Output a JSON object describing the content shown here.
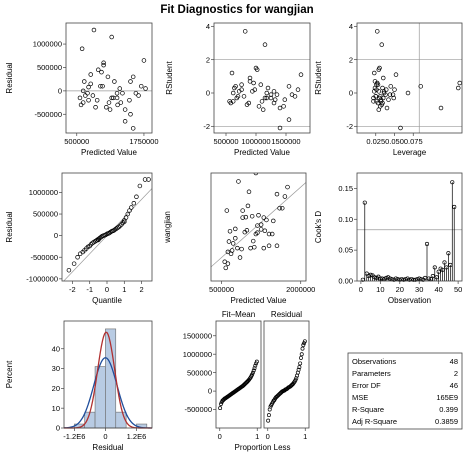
{
  "title": "Fit Diagnostics for wangjian",
  "chart_data": [
    {
      "id": "p1",
      "type": "scatter",
      "xlabel": "Predicted Value",
      "ylabel": "Residual",
      "xlim": [
        300000,
        1900000
      ],
      "ylim": [
        -900000,
        1450000
      ],
      "xticks": [
        {
          "v": 500000,
          "t": "500000"
        },
        {
          "v": 1750000,
          "t": "1750000"
        }
      ],
      "yticks": [
        {
          "v": 1000000,
          "t": "1000000"
        },
        {
          "v": 500000,
          "t": "500000"
        },
        {
          "v": 0,
          "t": "0"
        },
        {
          "v": -500000,
          "t": "-500000"
        }
      ],
      "hlines": [
        0
      ],
      "x": [
        560000,
        600000,
        640000,
        700000,
        760000,
        820000,
        880000,
        940000,
        1000000,
        1050000,
        1100000,
        1150000,
        1200000,
        1250000,
        1300000,
        1350000,
        1400000,
        1480000,
        1550000,
        1600000,
        1700000,
        1750000,
        1780000,
        1500000,
        1260000,
        660000,
        720000,
        900000,
        980000,
        1080000,
        1180000,
        1320000,
        580000,
        620000,
        800000,
        960000,
        1120000,
        1400000,
        1650000,
        1000000,
        850000,
        760000,
        1250000,
        1550000,
        1500000,
        1150000,
        720000,
        620000
      ],
      "y": [
        -150000,
        900000,
        200000,
        -50000,
        350000,
        1300000,
        -200000,
        100000,
        600000,
        -350000,
        -250000,
        1150000,
        200000,
        -150000,
        50000,
        -50000,
        -400000,
        -200000,
        300000,
        -50000,
        100000,
        650000,
        50000,
        -500000,
        -300000,
        -100000,
        -200000,
        450000,
        100000,
        300000,
        -150000,
        -250000,
        -300000,
        0,
        -100000,
        400000,
        -400000,
        -650000,
        -100000,
        550000,
        -350000,
        150000,
        -50000,
        -800000,
        200000,
        -150000,
        80000,
        -250000
      ]
    },
    {
      "id": "p2",
      "type": "scatter",
      "xlabel": "Predicted Value",
      "ylabel": "RStudent",
      "xlim": [
        300000,
        1900000
      ],
      "ylim": [
        -2.4,
        4.2
      ],
      "xticks": [
        {
          "v": 500000,
          "t": "500000"
        },
        {
          "v": 1000000,
          "t": "1000000"
        },
        {
          "v": 1500000,
          "t": "1500000"
        }
      ],
      "yticks": [
        {
          "v": 4,
          "t": "4"
        },
        {
          "v": 2,
          "t": "2"
        },
        {
          "v": 0,
          "t": "0"
        },
        {
          "v": -2,
          "t": "-2"
        }
      ],
      "hlines": [
        2,
        -2
      ],
      "x": [
        560000,
        600000,
        640000,
        700000,
        760000,
        820000,
        880000,
        940000,
        1000000,
        1050000,
        1100000,
        1150000,
        1200000,
        1250000,
        1300000,
        1350000,
        1400000,
        1480000,
        1550000,
        1600000,
        1700000,
        1750000,
        680000,
        900000,
        980000,
        1080000,
        1180000,
        1320000,
        580000,
        620000,
        800000,
        960000,
        1120000,
        1400000,
        1650000,
        850000,
        760000,
        1250000,
        1550000,
        1150000,
        720000,
        620000,
        1020000,
        900000,
        1180000,
        1460000,
        660000,
        1300000
      ],
      "y": [
        -0.5,
        1.2,
        0.3,
        -0.2,
        0.5,
        3.7,
        -0.6,
        0.1,
        1.5,
        -0.8,
        -0.5,
        2.9,
        0.3,
        -0.3,
        0.1,
        -0.1,
        -0.9,
        -0.4,
        0.4,
        -0.1,
        0.2,
        1.1,
        -0.3,
        0.7,
        0.2,
        0.5,
        -0.3,
        -0.4,
        -0.6,
        0.0,
        -0.2,
        0.6,
        -1.0,
        -2.1,
        -0.2,
        -0.7,
        0.2,
        -0.1,
        -1.6,
        -0.3,
        0.1,
        -0.5,
        1.4,
        0.9,
        0.0,
        -0.8,
        0.4,
        -0.6
      ]
    },
    {
      "id": "p3",
      "type": "scatter",
      "xlabel": "Leverage",
      "ylabel": "RStudent",
      "xlim": [
        0.0,
        0.14
      ],
      "ylim": [
        -2.4,
        4.2
      ],
      "xticks": [
        {
          "v": 0.025,
          "t": "0.025"
        },
        {
          "v": 0.05,
          "t": "0.050"
        },
        {
          "v": 0.075,
          "t": "0.075"
        }
      ],
      "yticks": [
        {
          "v": 4,
          "t": "4"
        },
        {
          "v": 2,
          "t": "2"
        },
        {
          "v": 0,
          "t": "0"
        },
        {
          "v": -2,
          "t": "-2"
        }
      ],
      "hlines": [
        2,
        -2
      ],
      "vlines": [
        0.083
      ],
      "x": [
        0.022,
        0.023,
        0.024,
        0.025,
        0.026,
        0.027,
        0.028,
        0.029,
        0.03,
        0.031,
        0.032,
        0.033,
        0.034,
        0.035,
        0.036,
        0.038,
        0.04,
        0.042,
        0.045,
        0.048,
        0.05,
        0.052,
        0.022,
        0.024,
        0.026,
        0.028,
        0.03,
        0.032,
        0.034,
        0.036,
        0.025,
        0.027,
        0.029,
        0.031,
        0.033,
        0.039,
        0.044,
        0.049,
        0.023,
        0.026,
        0.029,
        0.035,
        0.068,
        0.085,
        0.112,
        0.135,
        0.137,
        0.058
      ],
      "y": [
        -0.5,
        1.2,
        0.3,
        -0.2,
        0.5,
        3.7,
        -0.6,
        0.1,
        1.5,
        -0.8,
        -0.5,
        2.9,
        0.3,
        -0.3,
        0.1,
        -0.1,
        -0.9,
        -0.4,
        0.4,
        -0.1,
        0.2,
        1.1,
        -0.3,
        0.7,
        0.2,
        0.5,
        -0.3,
        -0.4,
        -0.6,
        0.0,
        -0.2,
        0.6,
        -1.0,
        -0.2,
        -0.7,
        0.2,
        -0.1,
        -0.3,
        0.1,
        -0.5,
        1.4,
        0.9,
        0.0,
        0.4,
        -0.9,
        0.3,
        0.6,
        -2.1
      ]
    },
    {
      "id": "p4",
      "type": "scatter",
      "xlabel": "Quantile",
      "ylabel": "Residual",
      "xlim": [
        -2.6,
        2.6
      ],
      "ylim": [
        -1050000,
        1450000
      ],
      "xticks": [
        {
          "v": -2,
          "t": "-2"
        },
        {
          "v": -1,
          "t": "-1"
        },
        {
          "v": 0,
          "t": "0"
        },
        {
          "v": 1,
          "t": "1"
        },
        {
          "v": 2,
          "t": "2"
        }
      ],
      "yticks": [
        {
          "v": 1000000,
          "t": "1000000"
        },
        {
          "v": 500000,
          "t": "500000"
        },
        {
          "v": 0,
          "t": "0"
        },
        {
          "v": -500000,
          "t": "-500000"
        },
        {
          "v": -1000000,
          "t": "-1000000"
        }
      ],
      "refline": {
        "slope": 420000,
        "intercept": 0
      },
      "x": [
        -2.2,
        -1.9,
        -1.7,
        -1.55,
        -1.4,
        -1.3,
        -1.2,
        -1.1,
        -1.0,
        -0.92,
        -0.84,
        -0.76,
        -0.68,
        -0.6,
        -0.53,
        -0.46,
        -0.4,
        -0.33,
        -0.27,
        -0.2,
        -0.13,
        -0.07,
        0.0,
        0.07,
        0.13,
        0.2,
        0.27,
        0.33,
        0.4,
        0.46,
        0.53,
        0.6,
        0.68,
        0.76,
        0.84,
        0.92,
        1.0,
        1.1,
        1.2,
        1.3,
        1.4,
        1.55,
        1.7,
        1.9,
        2.2,
        2.4,
        1.0,
        -0.5
      ],
      "y": [
        -800000,
        -650000,
        -500000,
        -420000,
        -380000,
        -340000,
        -300000,
        -260000,
        -240000,
        -200000,
        -170000,
        -150000,
        -130000,
        -110000,
        -90000,
        -70000,
        -50000,
        -30000,
        -10000,
        0,
        10000,
        20000,
        40000,
        50000,
        60000,
        80000,
        100000,
        110000,
        120000,
        140000,
        160000,
        180000,
        200000,
        230000,
        260000,
        300000,
        350000,
        420000,
        500000,
        580000,
        650000,
        750000,
        900000,
        1150000,
        1300000,
        1300000,
        320000,
        -100000
      ]
    },
    {
      "id": "p5",
      "type": "scatter",
      "xlabel": "Predicted Value",
      "ylabel": "wangjian",
      "xlim": [
        300000,
        2100000
      ],
      "ylim": [
        0,
        2300000
      ],
      "xticks": [
        {
          "v": 500000,
          "t": "500000"
        },
        {
          "v": 2000000,
          "t": "2000000"
        }
      ],
      "yticks": [],
      "refline": {
        "slope": 1,
        "intercept": 0
      },
      "x": [
        560000,
        600000,
        640000,
        700000,
        760000,
        820000,
        880000,
        940000,
        1000000,
        1050000,
        1100000,
        1150000,
        1200000,
        1250000,
        1300000,
        1350000,
        1400000,
        1480000,
        1550000,
        1600000,
        1700000,
        1750000,
        680000,
        900000,
        980000,
        1080000,
        1180000,
        1320000,
        580000,
        620000,
        800000,
        960000,
        1120000,
        1400000,
        1650000,
        850000,
        760000,
        1250000,
        1550000,
        1150000,
        720000,
        620000,
        1020000,
        900000,
        1180000,
        1460000,
        660000,
        1300000
      ],
      "y": [
        410000,
        1500000,
        840000,
        650000,
        1110000,
        2120000,
        680000,
        1040000,
        1600000,
        700000,
        850000,
        2300000,
        1400000,
        1100000,
        1350000,
        1300000,
        1000000,
        1280000,
        1850000,
        1550000,
        1800000,
        2000000,
        580000,
        1350000,
        1080000,
        1380000,
        1030000,
        1070000,
        280000,
        620000,
        700000,
        1360000,
        720000,
        750000,
        1550000,
        500000,
        910000,
        1200000,
        750000,
        1000000,
        800000,
        370000,
        1900000,
        1500000,
        1180000,
        1000000,
        1060000,
        700000
      ]
    },
    {
      "id": "p6",
      "type": "needle",
      "xlabel": "Observation",
      "ylabel": "Cook's D",
      "xlim": [
        -2,
        52
      ],
      "ylim": [
        0,
        0.175
      ],
      "xticks": [
        {
          "v": 0,
          "t": "0"
        },
        {
          "v": 10,
          "t": "10"
        },
        {
          "v": 20,
          "t": "20"
        },
        {
          "v": 30,
          "t": "30"
        },
        {
          "v": 40,
          "t": "40"
        },
        {
          "v": 50,
          "t": "50"
        }
      ],
      "yticks": [
        {
          "v": 0.15,
          "t": "0.15"
        },
        {
          "v": 0.1,
          "t": "0.10"
        },
        {
          "v": 0.05,
          "t": "0.05"
        },
        {
          "v": 0.0,
          "t": "0.00"
        }
      ],
      "hlines": [
        0.083
      ],
      "x": [
        1,
        2,
        3,
        4,
        5,
        6,
        7,
        8,
        9,
        10,
        11,
        12,
        13,
        14,
        15,
        16,
        17,
        18,
        19,
        20,
        21,
        22,
        23,
        24,
        25,
        26,
        27,
        28,
        29,
        30,
        31,
        32,
        33,
        34,
        35,
        36,
        37,
        38,
        39,
        40,
        41,
        42,
        43,
        44,
        45,
        46,
        47,
        48
      ],
      "y": [
        0.002,
        0.127,
        0.012,
        0.008,
        0.01,
        0.009,
        0.006,
        0.005,
        0.007,
        0.004,
        0.004,
        0.003,
        0.005,
        0.006,
        0.004,
        0.003,
        0.002,
        0.004,
        0.003,
        0.002,
        0.003,
        0.002,
        0.003,
        0.004,
        0.002,
        0.003,
        0.002,
        0.002,
        0.003,
        0.004,
        0.003,
        0.002,
        0.005,
        0.06,
        0.004,
        0.003,
        0.008,
        0.022,
        0.006,
        0.015,
        0.02,
        0.018,
        0.03,
        0.022,
        0.045,
        0.026,
        0.16,
        0.12
      ]
    },
    {
      "id": "p7",
      "type": "histogram",
      "xlabel": "Residual",
      "ylabel": "Percent",
      "xlim": [
        -1600000,
        1800000
      ],
      "ylim": [
        0,
        54
      ],
      "xticks": [
        {
          "v": -1200000,
          "t": "-1.2E6"
        },
        {
          "v": 0,
          "t": "0"
        },
        {
          "v": 1200000,
          "t": "1.2E6"
        }
      ],
      "yticks": [
        {
          "v": 40,
          "t": "40"
        },
        {
          "v": 30,
          "t": "30"
        },
        {
          "v": 20,
          "t": "20"
        },
        {
          "v": 10,
          "t": "10"
        },
        {
          "v": 0,
          "t": "0"
        }
      ],
      "bins": [
        {
          "lo": -1200000,
          "hi": -800000,
          "pct": 2
        },
        {
          "lo": -800000,
          "hi": -400000,
          "pct": 8
        },
        {
          "lo": -400000,
          "hi": 0,
          "pct": 31
        },
        {
          "lo": 0,
          "hi": 400000,
          "pct": 50
        },
        {
          "lo": 400000,
          "hi": 800000,
          "pct": 8
        },
        {
          "lo": 800000,
          "hi": 1200000,
          "pct": 0
        },
        {
          "lo": 1200000,
          "hi": 1600000,
          "pct": 2
        }
      ],
      "curves": [
        {
          "kind": "normal",
          "mean": 0,
          "sd": 450000,
          "scale": 400000,
          "color": "#1f4e9c"
        },
        {
          "kind": "normal",
          "mean": 30000,
          "sd": 330000,
          "scale": 400000,
          "color": "#b03030"
        }
      ]
    },
    {
      "id": "p8",
      "type": "rfplot",
      "xlabel": "Proportion Less",
      "panels": [
        "Fit–Mean",
        "Residual"
      ],
      "ylim": [
        -1000000,
        1900000
      ],
      "yticks": [
        {
          "v": 1500000,
          "t": "1500000"
        },
        {
          "v": 1000000,
          "t": "1000000"
        },
        {
          "v": 500000,
          "t": "500000"
        },
        {
          "v": 0,
          "t": "0"
        },
        {
          "v": -500000,
          "t": "-500000"
        }
      ],
      "xticks": [
        {
          "v": 0,
          "t": "0"
        },
        {
          "v": 1,
          "t": "1"
        }
      ],
      "fit_minus_mean": [
        -460000,
        -350000,
        -300000,
        -260000,
        -240000,
        -220000,
        -200000,
        -190000,
        -175000,
        -160000,
        -145000,
        -130000,
        -115000,
        -100000,
        -85000,
        -70000,
        -55000,
        -40000,
        -25000,
        -10000,
        5000,
        20000,
        35000,
        50000,
        65000,
        80000,
        95000,
        110000,
        125000,
        140000,
        160000,
        180000,
        200000,
        220000,
        240000,
        260000,
        285000,
        310000,
        340000,
        370000,
        410000,
        450000,
        500000,
        560000,
        620000,
        690000,
        750000,
        800000
      ],
      "residual": [
        -800000,
        -650000,
        -500000,
        -420000,
        -380000,
        -340000,
        -300000,
        -260000,
        -240000,
        -200000,
        -170000,
        -150000,
        -130000,
        -110000,
        -90000,
        -70000,
        -50000,
        -30000,
        -10000,
        0,
        10000,
        20000,
        40000,
        50000,
        60000,
        80000,
        100000,
        110000,
        120000,
        140000,
        160000,
        180000,
        200000,
        230000,
        260000,
        300000,
        350000,
        420000,
        500000,
        580000,
        650000,
        750000,
        900000,
        1000000,
        1150000,
        1250000,
        1300000,
        1350000
      ]
    }
  ],
  "stats_table": [
    {
      "label": "Observations",
      "value": "48"
    },
    {
      "label": "Parameters",
      "value": "2"
    },
    {
      "label": "Error DF",
      "value": "46"
    },
    {
      "label": "MSE",
      "value": "165E9"
    },
    {
      "label": "R-Square",
      "value": "0.399"
    },
    {
      "label": "Adj R-Square",
      "value": "0.3859"
    }
  ]
}
